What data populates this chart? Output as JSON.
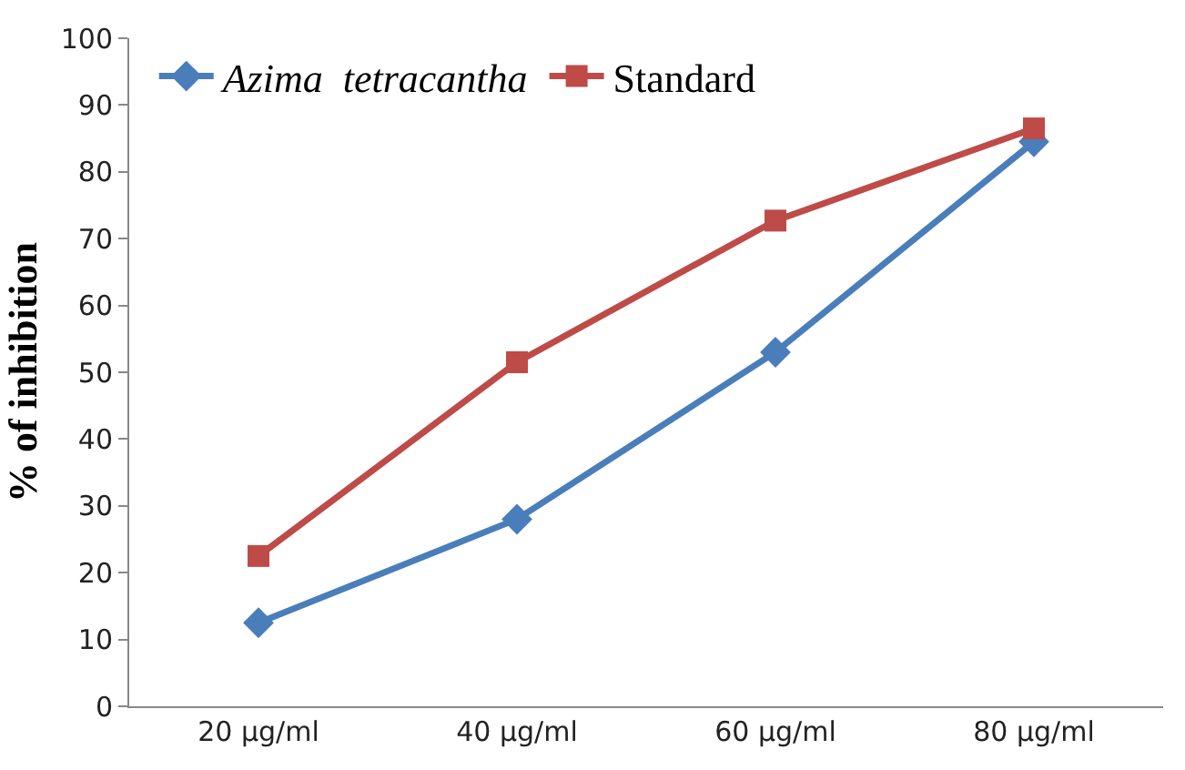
{
  "chart_data": {
    "type": "line",
    "ylabel": "% of inhibition",
    "categories": [
      "20 µg/ml",
      "40 µg/ml",
      "60 µg/ml",
      "80 µg/ml"
    ],
    "series": [
      {
        "name": "Azima  tetracantha",
        "color": "#4a7ebb",
        "values": [
          12.5,
          28,
          53,
          84.5
        ],
        "marker": "diamond"
      },
      {
        "name": "Standard",
        "color": "#be4b48",
        "values": [
          22.5,
          51.5,
          72.7,
          86.5
        ],
        "marker": "square"
      }
    ],
    "ylim": [
      0,
      100
    ],
    "yticks": [
      0,
      10,
      20,
      30,
      40,
      50,
      60,
      70,
      80,
      90,
      100
    ],
    "legend": "top left"
  }
}
